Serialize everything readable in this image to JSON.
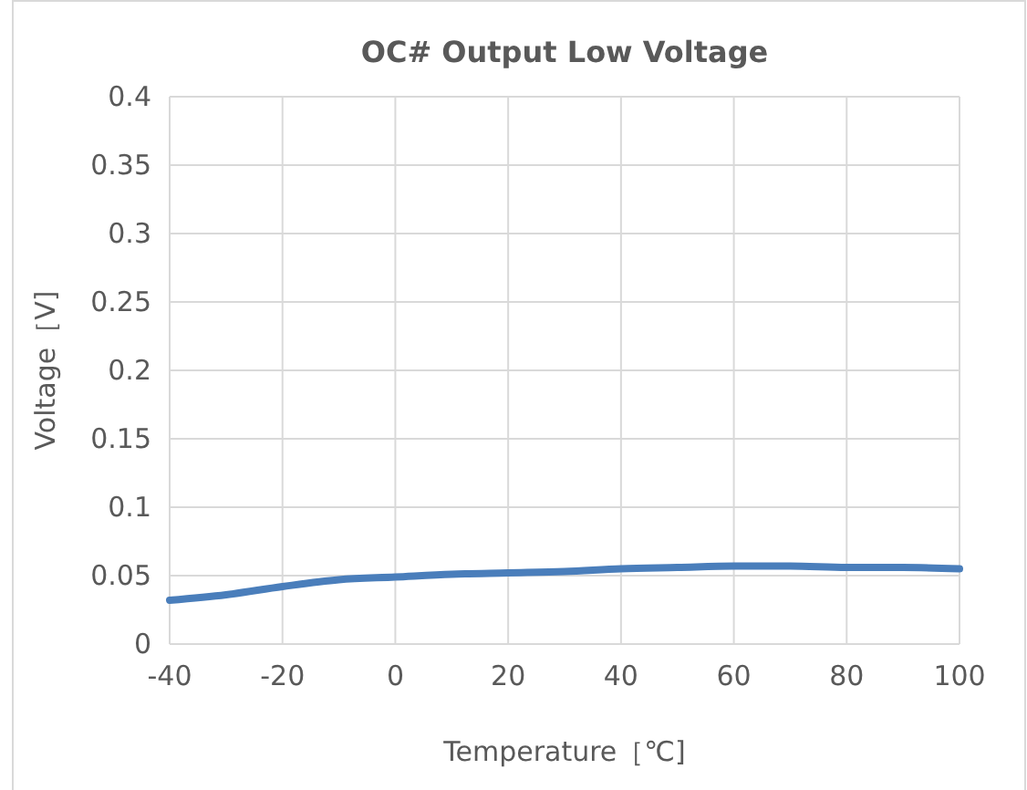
{
  "chart_data": {
    "type": "line",
    "title": "OC# Output Low Voltage",
    "xlabel": "Temperature［℃]",
    "ylabel": "Voltage［V]",
    "x": [
      -40,
      -30,
      -20,
      -10,
      0,
      10,
      20,
      30,
      40,
      50,
      60,
      70,
      80,
      90,
      100
    ],
    "series": [
      {
        "color": "#4a7ebb",
        "values": [
          0.032,
          0.036,
          0.042,
          0.047,
          0.049,
          0.051,
          0.052,
          0.053,
          0.055,
          0.056,
          0.057,
          0.057,
          0.056,
          0.056,
          0.055
        ]
      }
    ],
    "xlim": [
      -40,
      100
    ],
    "xticks": [
      -40,
      -20,
      0,
      20,
      40,
      60,
      80,
      100
    ],
    "ylim": [
      0,
      0.4
    ],
    "yticks": [
      0,
      0.05,
      0.1,
      0.15,
      0.2,
      0.25,
      0.3,
      0.35,
      0.4
    ],
    "grid": true,
    "marker": "none",
    "line_style": "solid"
  }
}
